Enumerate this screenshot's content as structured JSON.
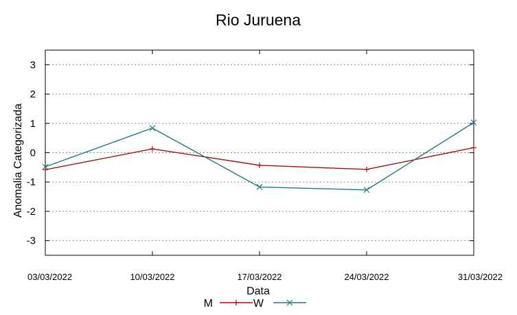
{
  "chart_data": {
    "type": "line",
    "title": "Rio Juruena",
    "xlabel": "Data",
    "ylabel": "Anomalia Categorizada",
    "categories": [
      "03/03/2022",
      "10/03/2022",
      "17/03/2022",
      "24/03/2022",
      "31/03/2022"
    ],
    "ylim": [
      -3.5,
      3.5
    ],
    "yticks": [
      "3",
      "2",
      "1",
      "0",
      "-1",
      "-2",
      "-3"
    ],
    "ytick_values": [
      3,
      2,
      1,
      0,
      -1,
      -2,
      -3
    ],
    "grid": true,
    "legend_position": "bottom-center",
    "series": [
      {
        "name": "M",
        "values": [
          -0.58,
          0.13,
          -0.43,
          -0.57,
          0.17
        ],
        "color": "#a50f15",
        "marker": "plus"
      },
      {
        "name": "W",
        "values": [
          -0.48,
          0.84,
          -1.17,
          -1.27,
          1.03
        ],
        "color": "#1b7a85",
        "marker": "cross"
      }
    ]
  }
}
